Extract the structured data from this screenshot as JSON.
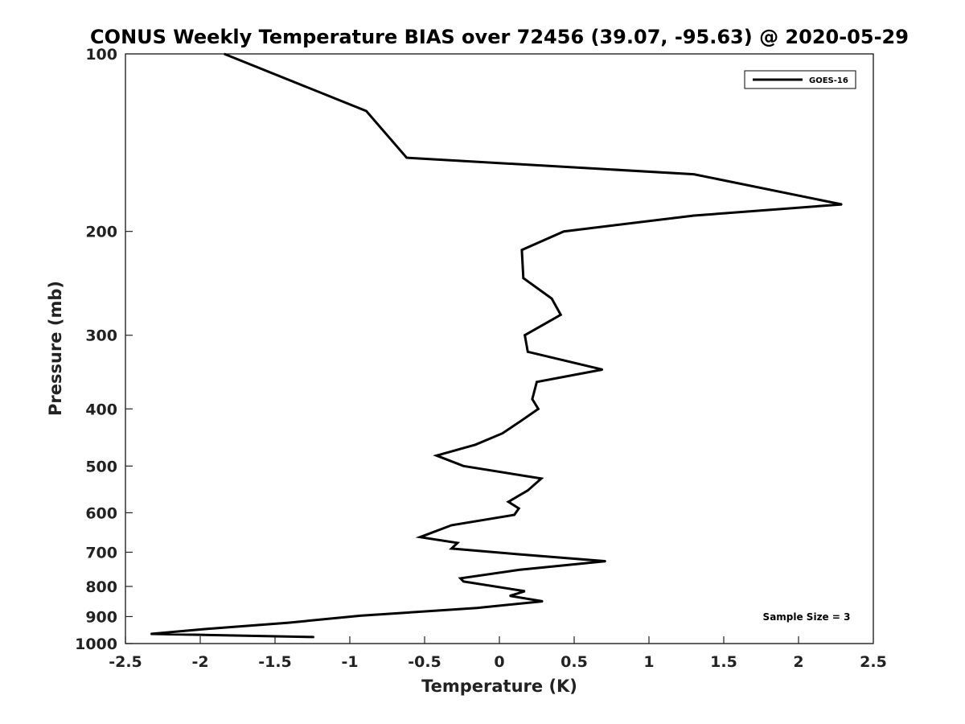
{
  "chart_data": {
    "type": "line",
    "title": "CONUS Weekly Temperature BIAS over 72456 (39.07, -95.63) @ 2020-05-29",
    "xlabel": "Temperature (K)",
    "ylabel": "Pressure (mb)",
    "xlim": [
      -2.5,
      2.5
    ],
    "ylim": [
      1000,
      100
    ],
    "y_scale": "log",
    "y_reversed": true,
    "grid": false,
    "legend_position": "top-right",
    "x_ticks": [
      "-2.5",
      "-2",
      "-1.5",
      "-1",
      "-0.5",
      "0",
      "0.5",
      "1",
      "1.5",
      "2",
      "2.5"
    ],
    "y_ticks": [
      "100",
      "200",
      "300",
      "400",
      "500",
      "600",
      "700",
      "800",
      "900",
      "1000"
    ],
    "series": [
      {
        "name": "GOES-16",
        "color": "#000000",
        "points": [
          {
            "x": -1.84,
            "p": 100
          },
          {
            "x": -0.89,
            "p": 125
          },
          {
            "x": -0.62,
            "p": 150
          },
          {
            "x": 1.3,
            "p": 160
          },
          {
            "x": 2.29,
            "p": 180
          },
          {
            "x": 1.3,
            "p": 188
          },
          {
            "x": 0.43,
            "p": 200
          },
          {
            "x": 0.15,
            "p": 215
          },
          {
            "x": 0.16,
            "p": 240
          },
          {
            "x": 0.35,
            "p": 260
          },
          {
            "x": 0.41,
            "p": 277
          },
          {
            "x": 0.17,
            "p": 300
          },
          {
            "x": 0.19,
            "p": 320
          },
          {
            "x": 0.69,
            "p": 343
          },
          {
            "x": 0.25,
            "p": 360
          },
          {
            "x": 0.22,
            "p": 385
          },
          {
            "x": 0.26,
            "p": 400
          },
          {
            "x": 0.14,
            "p": 420
          },
          {
            "x": 0.02,
            "p": 440
          },
          {
            "x": -0.16,
            "p": 460
          },
          {
            "x": -0.42,
            "p": 480
          },
          {
            "x": -0.24,
            "p": 500
          },
          {
            "x": 0.28,
            "p": 525
          },
          {
            "x": 0.19,
            "p": 550
          },
          {
            "x": 0.06,
            "p": 575
          },
          {
            "x": 0.13,
            "p": 590
          },
          {
            "x": 0.1,
            "p": 605
          },
          {
            "x": -0.32,
            "p": 630
          },
          {
            "x": -0.53,
            "p": 660
          },
          {
            "x": -0.28,
            "p": 675
          },
          {
            "x": -0.32,
            "p": 690
          },
          {
            "x": 0.11,
            "p": 705
          },
          {
            "x": 0.71,
            "p": 725
          },
          {
            "x": 0.13,
            "p": 750
          },
          {
            "x": -0.26,
            "p": 775
          },
          {
            "x": -0.24,
            "p": 785
          },
          {
            "x": 0.17,
            "p": 815
          },
          {
            "x": 0.07,
            "p": 830
          },
          {
            "x": 0.29,
            "p": 848
          },
          {
            "x": -0.15,
            "p": 870
          },
          {
            "x": -0.93,
            "p": 897
          },
          {
            "x": -1.41,
            "p": 922
          },
          {
            "x": -1.97,
            "p": 945
          },
          {
            "x": -2.33,
            "p": 963
          },
          {
            "x": -1.24,
            "p": 975
          }
        ]
      }
    ],
    "annotation": "Sample Size = 3"
  }
}
